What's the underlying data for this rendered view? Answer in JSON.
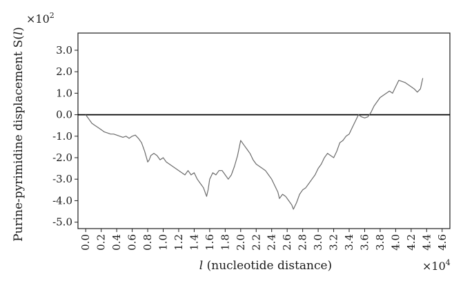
{
  "chart_data": {
    "type": "line",
    "xlabel_prefix": "l",
    "xlabel": " (nucleotide distance)",
    "ylabel": "Purine-pyrimidine displacement S(",
    "ylabel_var": "l",
    "ylabel_suffix": ")",
    "x_multiplier_base": "×10",
    "x_multiplier_exp": "4",
    "y_multiplier_base": "×10",
    "y_multiplier_exp": "2",
    "xlim": [
      -0.1,
      4.7
    ],
    "ylim": [
      -5.3,
      3.8
    ],
    "x_ticks": [
      "0.0",
      "0.2",
      "0.4",
      "0.6",
      "0.8",
      "1.0",
      "1.2",
      "1.4",
      "1.6",
      "1.8",
      "2.0",
      "2.2",
      "2.4",
      "2.6",
      "2.8",
      "3.0",
      "3.2",
      "3.4",
      "3.6",
      "3.8",
      "4.0",
      "4.2",
      "4.4",
      "4.6"
    ],
    "y_ticks": [
      "3.0",
      "2.0",
      "1.0",
      "0.0",
      "-1.0",
      "-2.0",
      "-3.0",
      "-4.0",
      "-5.0"
    ],
    "zero_line": 0.0,
    "grid": false,
    "legend": "none",
    "series": [
      {
        "color": "#6a6a6a",
        "x": [
          0.0,
          0.04,
          0.08,
          0.12,
          0.16,
          0.2,
          0.24,
          0.28,
          0.32,
          0.36,
          0.4,
          0.44,
          0.48,
          0.52,
          0.56,
          0.6,
          0.64,
          0.68,
          0.72,
          0.76,
          0.8,
          0.82,
          0.84,
          0.88,
          0.92,
          0.96,
          1.0,
          1.04,
          1.08,
          1.12,
          1.16,
          1.2,
          1.24,
          1.28,
          1.32,
          1.36,
          1.4,
          1.44,
          1.48,
          1.52,
          1.56,
          1.58,
          1.6,
          1.64,
          1.68,
          1.72,
          1.76,
          1.8,
          1.84,
          1.88,
          1.92,
          1.96,
          2.0,
          2.04,
          2.08,
          2.12,
          2.16,
          2.2,
          2.24,
          2.28,
          2.32,
          2.36,
          2.4,
          2.44,
          2.48,
          2.5,
          2.54,
          2.58,
          2.62,
          2.66,
          2.68,
          2.72,
          2.76,
          2.8,
          2.84,
          2.88,
          2.92,
          2.96,
          3.0,
          3.04,
          3.08,
          3.12,
          3.16,
          3.2,
          3.24,
          3.28,
          3.32,
          3.36,
          3.4,
          3.44,
          3.48,
          3.52,
          3.56,
          3.6,
          3.64,
          3.68,
          3.72,
          3.76,
          3.8,
          3.84,
          3.88,
          3.92,
          3.96,
          4.0,
          4.04,
          4.08,
          4.12,
          4.16,
          4.2,
          4.24,
          4.28,
          4.32,
          4.35
        ],
        "y": [
          0.0,
          -0.2,
          -0.4,
          -0.5,
          -0.6,
          -0.7,
          -0.8,
          -0.85,
          -0.9,
          -0.9,
          -0.95,
          -1.0,
          -1.05,
          -1.0,
          -1.1,
          -1.0,
          -0.95,
          -1.1,
          -1.3,
          -1.7,
          -2.2,
          -2.1,
          -1.9,
          -1.8,
          -1.9,
          -2.1,
          -2.0,
          -2.2,
          -2.3,
          -2.4,
          -2.5,
          -2.6,
          -2.7,
          -2.8,
          -2.6,
          -2.8,
          -2.7,
          -3.0,
          -3.2,
          -3.4,
          -3.8,
          -3.5,
          -3.0,
          -2.7,
          -2.8,
          -2.6,
          -2.6,
          -2.8,
          -3.0,
          -2.8,
          -2.4,
          -1.9,
          -1.2,
          -1.4,
          -1.6,
          -1.8,
          -2.1,
          -2.3,
          -2.4,
          -2.5,
          -2.6,
          -2.8,
          -3.0,
          -3.3,
          -3.6,
          -3.9,
          -3.7,
          -3.8,
          -4.0,
          -4.2,
          -4.4,
          -4.1,
          -3.7,
          -3.5,
          -3.4,
          -3.2,
          -3.0,
          -2.8,
          -2.5,
          -2.3,
          -2.0,
          -1.8,
          -1.9,
          -2.0,
          -1.7,
          -1.3,
          -1.2,
          -1.0,
          -0.9,
          -0.6,
          -0.3,
          0.0,
          -0.1,
          -0.15,
          -0.1,
          0.1,
          0.4,
          0.6,
          0.8,
          0.9,
          1.0,
          1.1,
          1.0,
          1.3,
          1.6,
          1.55,
          1.5,
          1.4,
          1.3,
          1.2,
          1.05,
          1.2,
          1.7
        ]
      }
    ]
  }
}
